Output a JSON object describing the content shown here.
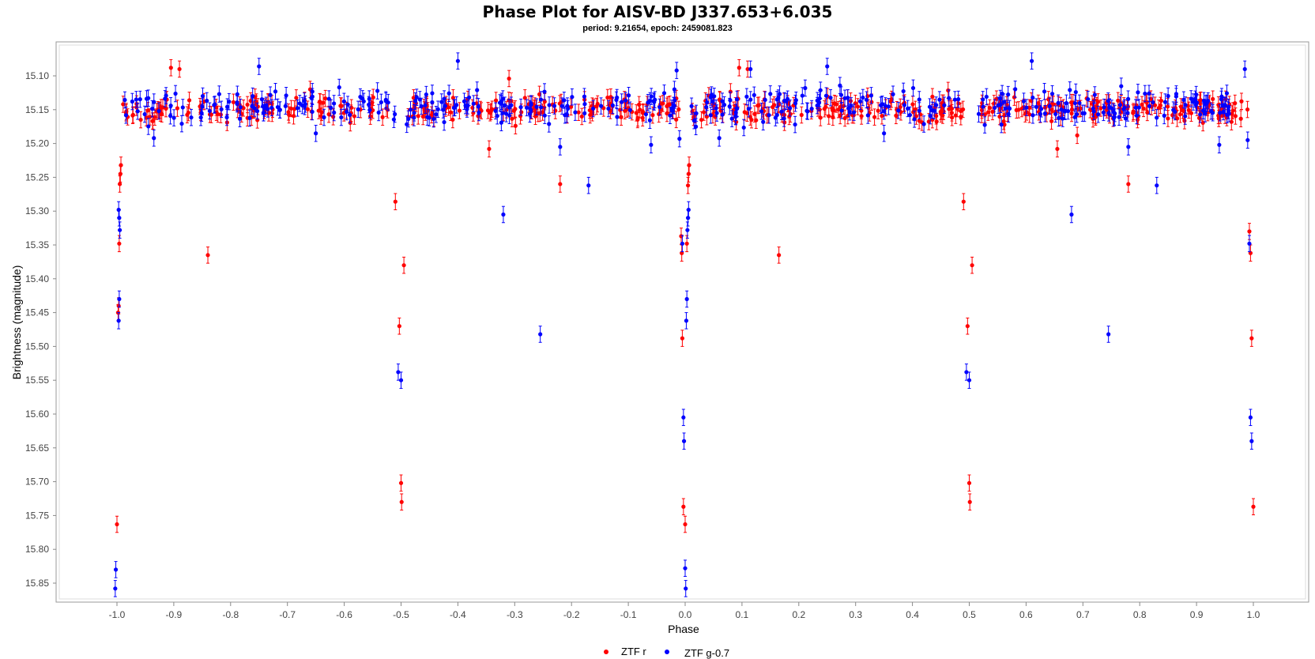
{
  "chart_data": {
    "type": "scatter",
    "title": "Phase Plot for AISV-BD J337.653+6.035",
    "subtitle": "period: 9.21654, epoch: 2459081.823",
    "xlabel": "Phase",
    "ylabel": "Brightness (magnitude)",
    "xlim": [
      -1.1,
      1.1
    ],
    "ylim": [
      15.04,
      15.885
    ],
    "y_inverted": true,
    "grid": false,
    "legend_position": "bottom-center",
    "x_ticks": [
      "-1.0",
      "-0.9",
      "-0.8",
      "-0.7",
      "-0.6",
      "-0.5",
      "-0.4",
      "-0.3",
      "-0.2",
      "-0.1",
      "0.0",
      "0.1",
      "0.2",
      "0.3",
      "0.4",
      "0.5",
      "0.6",
      "0.7",
      "0.8",
      "0.9",
      "1.0"
    ],
    "y_ticks": [
      "15.10",
      "15.15",
      "15.20",
      "15.25",
      "15.30",
      "15.35",
      "15.40",
      "15.45",
      "15.50",
      "15.55",
      "15.60",
      "15.65",
      "15.70",
      "15.75",
      "15.80",
      "15.85"
    ],
    "error_bar": 0.012,
    "series": [
      {
        "name": "ZTF r",
        "color": "#ff0000",
        "baseline": 15.15,
        "outliers": [
          [
            -0.993,
            15.232
          ],
          [
            -0.994,
            15.245
          ],
          [
            -0.995,
            15.26
          ],
          [
            -0.996,
            15.348
          ],
          [
            -0.997,
            15.44
          ],
          [
            -0.998,
            15.45
          ],
          [
            -1.0,
            15.763
          ],
          [
            -0.905,
            15.088
          ],
          [
            -0.89,
            15.09
          ],
          [
            -0.84,
            15.365
          ],
          [
            -0.66,
            15.12
          ],
          [
            -0.51,
            15.286
          ],
          [
            -0.503,
            15.47
          ],
          [
            -0.5,
            15.702
          ],
          [
            -0.499,
            15.73
          ],
          [
            -0.495,
            15.38
          ],
          [
            -0.345,
            15.208
          ],
          [
            -0.31,
            15.104
          ],
          [
            -0.22,
            15.26
          ],
          [
            -0.007,
            15.337
          ],
          [
            -0.006,
            15.362
          ],
          [
            -0.005,
            15.488
          ],
          [
            -0.003,
            15.737
          ],
          [
            0.0,
            15.763
          ],
          [
            0.003,
            15.348
          ],
          [
            0.005,
            15.262
          ],
          [
            0.006,
            15.245
          ],
          [
            0.007,
            15.232
          ],
          [
            0.095,
            15.088
          ],
          [
            0.11,
            15.09
          ],
          [
            0.165,
            15.365
          ],
          [
            0.49,
            15.286
          ],
          [
            0.497,
            15.47
          ],
          [
            0.5,
            15.702
          ],
          [
            0.501,
            15.73
          ],
          [
            0.505,
            15.38
          ],
          [
            0.655,
            15.208
          ],
          [
            0.69,
            15.188
          ],
          [
            0.78,
            15.26
          ],
          [
            0.993,
            15.33
          ],
          [
            0.995,
            15.362
          ],
          [
            0.997,
            15.488
          ],
          [
            1.0,
            15.737
          ]
        ]
      },
      {
        "name": "ZTF g-0.7",
        "color": "#0000ff",
        "baseline": 15.145,
        "outliers": [
          [
            -0.997,
            15.298
          ],
          [
            -0.996,
            15.31
          ],
          [
            -0.995,
            15.328
          ],
          [
            -0.996,
            15.43
          ],
          [
            -0.997,
            15.462
          ],
          [
            -1.002,
            15.83
          ],
          [
            -1.003,
            15.858
          ],
          [
            -0.935,
            15.192
          ],
          [
            -0.75,
            15.086
          ],
          [
            -0.65,
            15.185
          ],
          [
            -0.505,
            15.538
          ],
          [
            -0.5,
            15.55
          ],
          [
            -0.4,
            15.078
          ],
          [
            -0.32,
            15.305
          ],
          [
            -0.255,
            15.482
          ],
          [
            -0.22,
            15.205
          ],
          [
            -0.17,
            15.262
          ],
          [
            -0.06,
            15.202
          ],
          [
            -0.015,
            15.092
          ],
          [
            -0.01,
            15.193
          ],
          [
            -0.005,
            15.348
          ],
          [
            -0.003,
            15.605
          ],
          [
            -0.002,
            15.64
          ],
          [
            0.0,
            15.828
          ],
          [
            0.001,
            15.858
          ],
          [
            0.002,
            15.462
          ],
          [
            0.003,
            15.43
          ],
          [
            0.004,
            15.328
          ],
          [
            0.005,
            15.31
          ],
          [
            0.006,
            15.298
          ],
          [
            0.06,
            15.192
          ],
          [
            0.115,
            15.09
          ],
          [
            0.25,
            15.086
          ],
          [
            0.35,
            15.185
          ],
          [
            0.495,
            15.538
          ],
          [
            0.5,
            15.55
          ],
          [
            0.61,
            15.078
          ],
          [
            0.68,
            15.305
          ],
          [
            0.745,
            15.482
          ],
          [
            0.78,
            15.205
          ],
          [
            0.83,
            15.262
          ],
          [
            0.94,
            15.202
          ],
          [
            0.985,
            15.09
          ],
          [
            0.99,
            15.195
          ],
          [
            0.993,
            15.348
          ],
          [
            0.995,
            15.605
          ],
          [
            0.997,
            15.64
          ]
        ]
      }
    ]
  }
}
